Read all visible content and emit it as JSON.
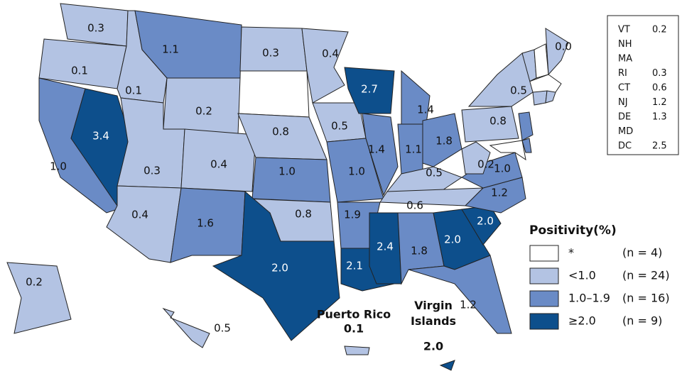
{
  "map": {
    "states": [
      {
        "value": "0.3",
        "color": "#b3c3e3"
      },
      {
        "value": "0.1",
        "color": "#b3c3e3"
      },
      {
        "value": "1.0",
        "color": "#6a8bc6"
      },
      {
        "value": "3.4",
        "color": "#0d4f8c"
      },
      {
        "value": "0.1",
        "color": "#b3c3e3"
      },
      {
        "value": "1.1",
        "color": "#6a8bc6"
      },
      {
        "value": "0.2",
        "color": "#b3c3e3"
      },
      {
        "value": "0.3",
        "color": "#b3c3e3"
      },
      {
        "value": "0.4",
        "color": "#b3c3e3"
      },
      {
        "value": "0.4",
        "color": "#b3c3e3"
      },
      {
        "value": "1.6",
        "color": "#6a8bc6"
      },
      {
        "value": "0.3",
        "color": "#b3c3e3"
      },
      {
        "value": "0.8",
        "color": "#b3c3e3"
      },
      {
        "value": "1.0",
        "color": "#6a8bc6"
      },
      {
        "value": "0.8",
        "color": "#b3c3e3"
      },
      {
        "value": "2.0",
        "color": "#0d4f8c"
      },
      {
        "value": "0.4",
        "color": "#b3c3e3"
      },
      {
        "value": "0.5",
        "color": "#b3c3e3"
      },
      {
        "value": "1.0",
        "color": "#6a8bc6"
      },
      {
        "value": "1.9",
        "color": "#6a8bc6"
      },
      {
        "value": "2.1",
        "color": "#0d4f8c"
      },
      {
        "value": "2.7",
        "color": "#0d4f8c"
      },
      {
        "value": "1.4",
        "color": "#6a8bc6"
      },
      {
        "value": "1.4",
        "color": "#6a8bc6"
      },
      {
        "value": "1.1",
        "color": "#6a8bc6"
      },
      {
        "value": "1.8",
        "color": "#6a8bc6"
      },
      {
        "value": "0.5",
        "color": "#b3c3e3"
      },
      {
        "value": "0.6",
        "color": "#b3c3e3"
      },
      {
        "value": "2.4",
        "color": "#0d4f8c"
      },
      {
        "value": "1.8",
        "color": "#6a8bc6"
      },
      {
        "value": "2.0",
        "color": "#0d4f8c"
      },
      {
        "value": "1.2",
        "color": "#6a8bc6"
      },
      {
        "value": "2.0",
        "color": "#0d4f8c"
      },
      {
        "value": "1.2",
        "color": "#6a8bc6"
      },
      {
        "value": "1.0",
        "color": "#6a8bc6"
      },
      {
        "value": "0.2",
        "color": "#b3c3e3"
      },
      {
        "value": "0.8",
        "color": "#b3c3e3"
      },
      {
        "value": "0.5",
        "color": "#b3c3e3"
      },
      {
        "value": "0.0",
        "color": "#b3c3e3"
      },
      {
        "value": "0.2",
        "color": "#b3c3e3"
      },
      {
        "value": "0.5",
        "color": "#b3c3e3"
      }
    ],
    "territories": [
      {
        "name": "Puerto Rico",
        "value": "0.1",
        "color": "#b3c3e3"
      },
      {
        "name": "Virgin Islands",
        "value": "2.0",
        "color": "#0d4f8c"
      }
    ],
    "inset": [
      {
        "state": "VT",
        "value": "0.2"
      },
      {
        "state": "NH"
      },
      {
        "state": "MA"
      },
      {
        "state": "RI",
        "value": "0.3"
      },
      {
        "state": "CT",
        "value": "0.6"
      },
      {
        "state": "NJ",
        "value": "1.2"
      },
      {
        "state": "DE",
        "value": "1.3"
      },
      {
        "state": "MD"
      },
      {
        "state": "DC",
        "value": "2.5"
      }
    ],
    "legend": {
      "title": "Positivity(%)",
      "items": [
        {
          "label": "*",
          "count": "(n = 4)",
          "color": "#ffffff"
        },
        {
          "label": "<1.0",
          "count": "(n = 24)",
          "color": "#b3c3e3"
        },
        {
          "label": "1.0–1.9",
          "count": "(n = 16)",
          "color": "#6a8bc6"
        },
        {
          "label": "≥2.0",
          "count": "(n = 9)",
          "color": "#0d4f8c"
        }
      ]
    }
  }
}
